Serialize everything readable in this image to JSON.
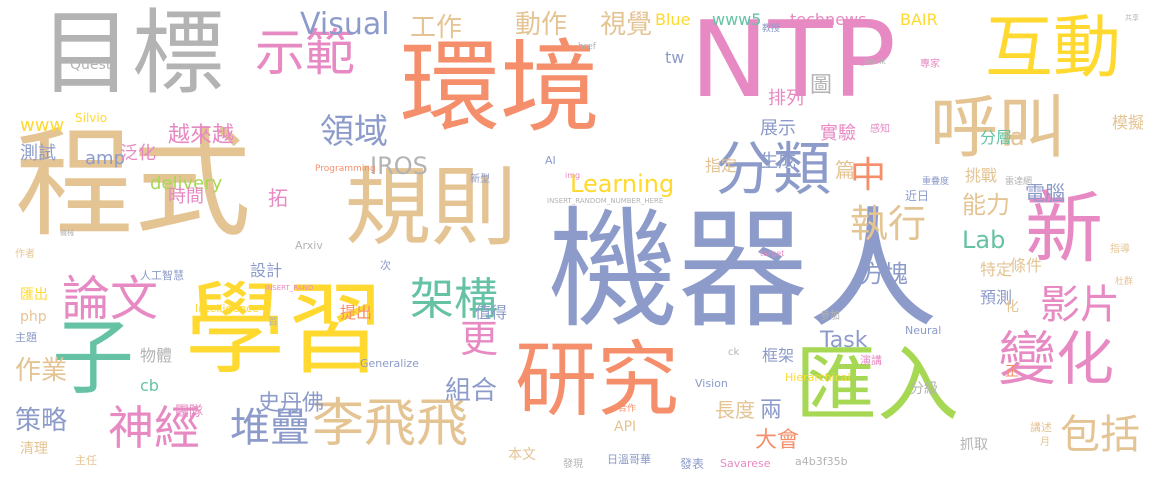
{
  "colors": {
    "orange": "#f58f6b",
    "purple": "#8c9bc9",
    "pink": "#e78ac3",
    "green": "#a6d854",
    "yellow": "#ffd92f",
    "tan": "#e5c494",
    "teal": "#66c2a5",
    "gray": "#b3b3b3"
  },
  "words": [
    {
      "id": "jiqiren",
      "text": "機器人",
      "color": "purple"
    },
    {
      "id": "chengshi",
      "text": "程式",
      "color": "tan"
    },
    {
      "id": "xuexi",
      "text": "學習",
      "color": "yellow"
    },
    {
      "id": "huanjing",
      "text": "環境",
      "color": "orange"
    },
    {
      "id": "ntp",
      "text": "NTP",
      "color": "pink"
    },
    {
      "id": "mubiao",
      "text": "目標",
      "color": "gray"
    },
    {
      "id": "guize",
      "text": "規則",
      "color": "tan"
    },
    {
      "id": "yanjiu",
      "text": "研究",
      "color": "orange"
    },
    {
      "id": "huiru",
      "text": "匯入",
      "color": "green"
    },
    {
      "id": "zi",
      "text": "子",
      "color": "teal"
    },
    {
      "id": "hudong",
      "text": "互動",
      "color": "yellow"
    },
    {
      "id": "hujiao",
      "text": "呼叫",
      "color": "tan"
    },
    {
      "id": "xin",
      "text": "新",
      "color": "pink"
    },
    {
      "id": "fenlei",
      "text": "分類",
      "color": "purple"
    },
    {
      "id": "bianhua",
      "text": "變化",
      "color": "pink"
    },
    {
      "id": "shifan",
      "text": "示範",
      "color": "pink"
    },
    {
      "id": "shenjing",
      "text": "神經",
      "color": "pink"
    },
    {
      "id": "lifeifei",
      "text": "李飛飛",
      "color": "tan"
    },
    {
      "id": "lunwen",
      "text": "論文",
      "color": "pink"
    },
    {
      "id": "duidie",
      "text": "堆疊",
      "color": "purple"
    },
    {
      "id": "jiagou",
      "text": "架構",
      "color": "teal"
    },
    {
      "id": "yingpian",
      "text": "影片",
      "color": "pink"
    },
    {
      "id": "baokuo",
      "text": "包括",
      "color": "tan"
    },
    {
      "id": "gong",
      "text": "更",
      "color": "pink"
    },
    {
      "id": "zhong",
      "text": "中",
      "color": "orange"
    },
    {
      "id": "zhixing",
      "text": "執行",
      "color": "tan"
    },
    {
      "id": "lingyu",
      "text": "領域",
      "color": "purple"
    },
    {
      "id": "visual",
      "text": "Visual",
      "color": "purple"
    },
    {
      "id": "gongzuo",
      "text": "工作",
      "color": "tan"
    },
    {
      "id": "dongzuo",
      "text": "動作",
      "color": "tan"
    },
    {
      "id": "shijue",
      "text": "視覺",
      "color": "tan"
    },
    {
      "id": "learning",
      "text": "Learning",
      "color": "yellow"
    },
    {
      "id": "iros",
      "text": "IROS",
      "color": "gray"
    },
    {
      "id": "lab",
      "text": "Lab",
      "color": "teal"
    },
    {
      "id": "nengli",
      "text": "能力",
      "color": "tan"
    },
    {
      "id": "fangkuai",
      "text": "方塊",
      "color": "purple"
    },
    {
      "id": "zuhe",
      "text": "組合",
      "color": "purple"
    },
    {
      "id": "celue",
      "text": "策略",
      "color": "purple"
    },
    {
      "id": "zuoye",
      "text": "作業",
      "color": "tan"
    },
    {
      "id": "dianao",
      "text": "電腦",
      "color": "purple"
    },
    {
      "id": "shidanfo",
      "text": "史丹佛",
      "color": "purple"
    },
    {
      "id": "task",
      "text": "Task",
      "color": "purple"
    },
    {
      "id": "dahui",
      "text": "大會",
      "color": "orange"
    },
    {
      "id": "changdu",
      "text": "長度",
      "color": "tan"
    },
    {
      "id": "liang",
      "text": "兩",
      "color": "purple"
    },
    {
      "id": "yuexuexue",
      "text": "越來越",
      "color": "pink"
    },
    {
      "id": "delivery",
      "text": "delivery",
      "color": "green"
    },
    {
      "id": "amp",
      "text": "amp",
      "color": "purple"
    },
    {
      "id": "www",
      "text": "www",
      "color": "yellow"
    },
    {
      "id": "www5",
      "text": "www5",
      "color": "teal"
    },
    {
      "id": "technews",
      "text": "technews",
      "color": "pink"
    },
    {
      "id": "bair",
      "text": "BAIR",
      "color": "yellow"
    },
    {
      "id": "blue",
      "text": "Blue",
      "color": "yellow"
    },
    {
      "id": "pailie",
      "text": "排列",
      "color": "pink"
    },
    {
      "id": "zhanshi",
      "text": "展示",
      "color": "purple"
    },
    {
      "id": "shengcheng",
      "text": "生成",
      "color": "purple"
    },
    {
      "id": "shiyan",
      "text": "實驗",
      "color": "pink"
    },
    {
      "id": "ceshi",
      "text": "測試",
      "color": "purple"
    },
    {
      "id": "fanhua",
      "text": "泛化",
      "color": "pink"
    },
    {
      "id": "shijian",
      "text": "時間",
      "color": "pink"
    },
    {
      "id": "sheji",
      "text": "設計",
      "color": "purple"
    },
    {
      "id": "tiaozhan",
      "text": "挑戰",
      "color": "tan"
    },
    {
      "id": "fenceng",
      "text": "分層",
      "color": "teal"
    },
    {
      "id": "tiaojian",
      "text": "條件",
      "color": "tan"
    },
    {
      "id": "moni",
      "text": "模擬",
      "color": "tan"
    },
    {
      "id": "zhiding",
      "text": "指定",
      "color": "tan"
    },
    {
      "id": "tedingg",
      "text": "特定",
      "color": "tan"
    },
    {
      "id": "yuce",
      "text": "預測",
      "color": "purple"
    },
    {
      "id": "tichu",
      "text": "提出",
      "color": "orange"
    },
    {
      "id": "zhide",
      "text": "值得",
      "color": "purple"
    },
    {
      "id": "kuangjia",
      "text": "框架",
      "color": "purple"
    },
    {
      "id": "wuti",
      "text": "物體",
      "color": "gray"
    },
    {
      "id": "tuandui",
      "text": "團隊",
      "color": "pink"
    },
    {
      "id": "fenji",
      "text": "分級",
      "color": "gray"
    },
    {
      "id": "zhuaqu",
      "text": "抓取",
      "color": "gray"
    },
    {
      "id": "qingli",
      "text": "清理",
      "color": "tan"
    },
    {
      "id": "benwen",
      "text": "本文",
      "color": "tan"
    },
    {
      "id": "api",
      "text": "API",
      "color": "tan"
    },
    {
      "id": "php",
      "text": "php",
      "color": "tan"
    },
    {
      "id": "huichu",
      "text": "匯出",
      "color": "yellow"
    },
    {
      "id": "cb",
      "text": "cb",
      "color": "teal"
    },
    {
      "id": "a",
      "text": "a",
      "color": "tan"
    },
    {
      "id": "tu",
      "text": "圖",
      "color": "gray"
    },
    {
      "id": "pian",
      "text": "篇",
      "color": "tan"
    },
    {
      "id": "tuo",
      "text": "拓",
      "color": "pink"
    },
    {
      "id": "tw",
      "text": "tw",
      "color": "purple"
    },
    {
      "id": "jinri",
      "text": "近日",
      "color": "purple"
    },
    {
      "id": "zheng",
      "text": "正",
      "color": "orange"
    },
    {
      "id": "hua",
      "text": "化",
      "color": "tan"
    },
    {
      "id": "quest",
      "text": "Quest",
      "color": "gray"
    },
    {
      "id": "silvio",
      "text": "Silvio",
      "color": "yellow"
    },
    {
      "id": "generalize",
      "text": "Generalize",
      "color": "purple"
    },
    {
      "id": "vision",
      "text": "Vision",
      "color": "purple"
    },
    {
      "id": "neural",
      "text": "Neural",
      "color": "purple"
    },
    {
      "id": "hierarchical",
      "text": "Hierarchical",
      "color": "yellow"
    },
    {
      "id": "intelligence",
      "text": "Intelligence",
      "color": "yellow"
    },
    {
      "id": "arxiv",
      "text": "Arxiv",
      "color": "gray"
    },
    {
      "id": "rengong",
      "text": "人工智慧",
      "color": "purple"
    },
    {
      "id": "zhuti",
      "text": "主題",
      "color": "purple"
    },
    {
      "id": "zhuren",
      "text": "主任",
      "color": "tan"
    },
    {
      "id": "faxian",
      "text": "發現",
      "color": "gray"
    },
    {
      "id": "wenjia",
      "text": "日溫哥華",
      "color": "purple"
    },
    {
      "id": "fabiao",
      "text": "發表",
      "color": "purple"
    },
    {
      "id": "savarese",
      "text": "Savarese",
      "color": "pink"
    },
    {
      "id": "hash",
      "text": "a4b3f35b",
      "color": "gray"
    },
    {
      "id": "yuejiang",
      "text": "講述",
      "color": "tan"
    },
    {
      "id": "yue",
      "text": "月",
      "color": "tan"
    },
    {
      "id": "yanjiang",
      "text": "演講",
      "color": "pink"
    },
    {
      "id": "canjia",
      "text": "參加",
      "color": "gray"
    },
    {
      "id": "zhuanjia",
      "text": "專家",
      "color": "pink"
    },
    {
      "id": "ganzhi",
      "text": "感知",
      "color": "pink"
    },
    {
      "id": "xinxing",
      "text": "新型",
      "color": "purple"
    },
    {
      "id": "zuozhe",
      "text": "作者",
      "color": "tan"
    },
    {
      "id": "ai",
      "text": "AI",
      "color": "purple"
    },
    {
      "id": "ci",
      "text": "次",
      "color": "purple"
    },
    {
      "id": "shou",
      "text": "首",
      "color": "gray"
    },
    {
      "id": "programming",
      "text": "Programming",
      "color": "orange"
    },
    {
      "id": "insertrnh",
      "text": "INSERT_RANDOM_NUMBER_HERE",
      "color": "gray"
    },
    {
      "id": "insertrand",
      "text": "INSERT_RAND",
      "color": "pink"
    },
    {
      "id": "href",
      "text": "href",
      "color": "gray"
    },
    {
      "id": "blank",
      "text": "_blank",
      "color": "gray"
    },
    {
      "id": "ck",
      "text": "ck",
      "color": "gray"
    },
    {
      "id": "jiaoshou",
      "text": "教授",
      "color": "purple"
    },
    {
      "id": "zhongdie",
      "text": "重疊度",
      "color": "purple"
    },
    {
      "id": "leida",
      "text": "雷達網",
      "color": "gray"
    },
    {
      "id": "zhidao",
      "text": "指導",
      "color": "tan"
    },
    {
      "id": "dushe",
      "text": "杜群",
      "color": "tan"
    },
    {
      "id": "hezuo",
      "text": "合作",
      "color": "orange"
    },
    {
      "id": "img",
      "text": "img",
      "color": "pink"
    },
    {
      "id": "target",
      "text": "target",
      "color": "pink"
    },
    {
      "id": "gongtong",
      "text": "共享",
      "color": "gray"
    },
    {
      "id": "jixie",
      "text": "機械",
      "color": "gray"
    }
  ]
}
